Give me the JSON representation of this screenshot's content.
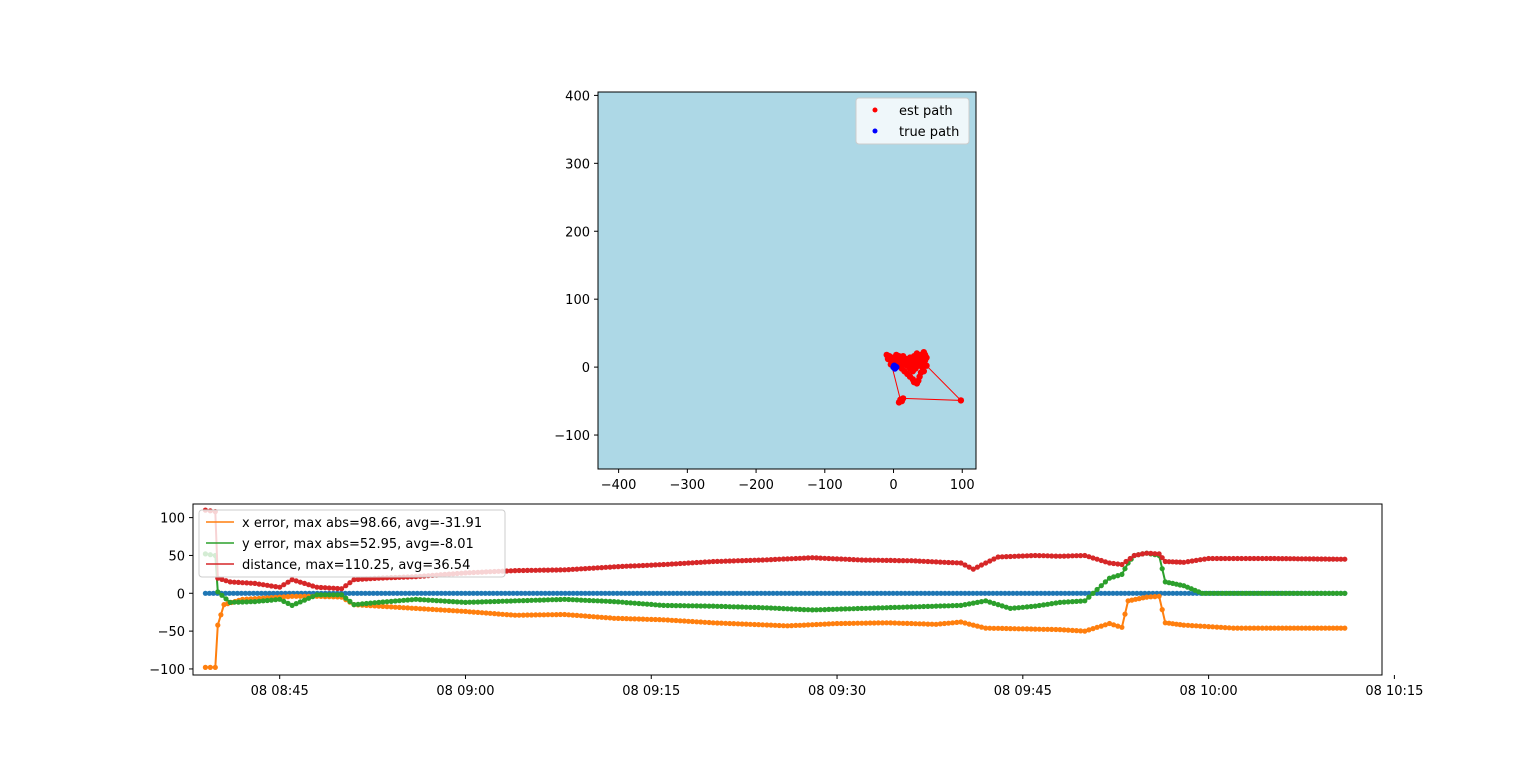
{
  "chart_data": [
    {
      "type": "scatter",
      "xlim": [
        -430,
        120
      ],
      "ylim": [
        -150,
        405
      ],
      "grid": false,
      "background_color": "#add8e6",
      "legend_placement": "top-right",
      "x_ticks": [
        -400,
        -300,
        -200,
        -100,
        0,
        100
      ],
      "y_ticks": [
        -100,
        0,
        100,
        200,
        300,
        400
      ],
      "x_tick_labels": [
        "−400",
        "−300",
        "−200",
        "−100",
        "0",
        "100"
      ],
      "y_tick_labels": [
        "−100",
        "0",
        "100",
        "200",
        "300",
        "400"
      ],
      "series": [
        {
          "name": "est path",
          "color": "#ff0000",
          "points": [
            [
              -10,
              18
            ],
            [
              -6,
              14
            ],
            [
              -4,
              10
            ],
            [
              0,
              14
            ],
            [
              4,
              18
            ],
            [
              8,
              14
            ],
            [
              10,
              10
            ],
            [
              14,
              16
            ],
            [
              18,
              12
            ],
            [
              20,
              8
            ],
            [
              24,
              14
            ],
            [
              28,
              10
            ],
            [
              30,
              16
            ],
            [
              34,
              20
            ],
            [
              38,
              14
            ],
            [
              40,
              18
            ],
            [
              44,
              22
            ],
            [
              46,
              18
            ],
            [
              48,
              14
            ],
            [
              46,
              10
            ],
            [
              44,
              6
            ],
            [
              42,
              0
            ],
            [
              40,
              -8
            ],
            [
              38,
              -14
            ],
            [
              36,
              -20
            ],
            [
              34,
              -24
            ],
            [
              30,
              -22
            ],
            [
              28,
              -18
            ],
            [
              24,
              -14
            ],
            [
              20,
              -10
            ],
            [
              16,
              -6
            ],
            [
              12,
              -2
            ],
            [
              8,
              2
            ],
            [
              4,
              6
            ],
            [
              2,
              10
            ],
            [
              6,
              8
            ],
            [
              10,
              6
            ],
            [
              14,
              4
            ],
            [
              18,
              6
            ],
            [
              22,
              8
            ],
            [
              26,
              6
            ],
            [
              30,
              4
            ],
            [
              32,
              8
            ],
            [
              36,
              12
            ],
            [
              42,
              16
            ],
            [
              44,
              12
            ],
            [
              40,
              6
            ],
            [
              36,
              2
            ],
            [
              32,
              -2
            ],
            [
              28,
              -6
            ],
            [
              24,
              -2
            ],
            [
              20,
              2
            ],
            [
              16,
              8
            ],
            [
              12,
              12
            ],
            [
              8,
              16
            ],
            [
              4,
              14
            ],
            [
              0,
              8
            ],
            [
              -4,
              4
            ],
            [
              -8,
              12
            ],
            [
              -6,
              16
            ],
            [
              10,
              -48
            ],
            [
              8,
              -52
            ],
            [
              12,
              -50
            ],
            [
              14,
              -46
            ],
            [
              98,
              -49
            ],
            [
              48,
              2
            ],
            [
              44,
              -6
            ]
          ]
        },
        {
          "name": "true path",
          "color": "#0000ff",
          "points": [
            [
              0,
              0
            ],
            [
              2,
              -2
            ],
            [
              4,
              0
            ],
            [
              1,
              2
            ]
          ]
        }
      ]
    },
    {
      "type": "line",
      "x_type": "time",
      "xlim": [
        "08 08:38",
        "08 10:14"
      ],
      "ylim": [
        -108,
        118
      ],
      "grid": false,
      "legend_placement": "top-left",
      "x_ticks": [
        "08 08:45",
        "08 09:00",
        "08 09:15",
        "08 09:30",
        "08 09:45",
        "08 10:00",
        "08 10:15"
      ],
      "y_ticks": [
        -100,
        -50,
        0,
        50,
        100
      ],
      "x_tick_labels": [
        "08 08:45",
        "08 09:00",
        "08 09:15",
        "08 09:30",
        "08 09:45",
        "08 10:00",
        "08 10:15"
      ],
      "y_tick_labels": [
        "−100",
        "−50",
        "0",
        "50",
        "100"
      ],
      "x_range_plotted": [
        "08 08:39",
        "08 10:11"
      ],
      "series": [
        {
          "name": "",
          "color": "#1f77b4",
          "points": [
            [
              "08 08:39",
              0
            ],
            [
              "08 10:11",
              0
            ]
          ]
        },
        {
          "name": "x error, max abs=98.66, avg=-31.91",
          "color": "#ff7f0e",
          "points": [
            [
              "08 08:39",
              -98
            ],
            [
              "08 08:39.8",
              -98
            ],
            [
              "08 08:40",
              -42
            ],
            [
              "08 08:40.5",
              -15
            ],
            [
              "08 08:42",
              -8
            ],
            [
              "08 08:44",
              -6
            ],
            [
              "08 08:46",
              -4
            ],
            [
              "08 08:48",
              -4
            ],
            [
              "08 08:50",
              -5
            ],
            [
              "08 08:51",
              -15
            ],
            [
              "08 08:53",
              -17
            ],
            [
              "08 08:56",
              -20
            ],
            [
              "08 09:00",
              -24
            ],
            [
              "08 09:04",
              -29
            ],
            [
              "08 09:08",
              -28
            ],
            [
              "08 09:12",
              -33
            ],
            [
              "08 09:16",
              -35
            ],
            [
              "08 09:20",
              -39
            ],
            [
              "08 09:23",
              -41
            ],
            [
              "08 09:26",
              -43
            ],
            [
              "08 09:30",
              -40
            ],
            [
              "08 09:34",
              -39
            ],
            [
              "08 09:38",
              -41
            ],
            [
              "08 09:40",
              -38
            ],
            [
              "08 09:42",
              -46
            ],
            [
              "08 09:45",
              -47
            ],
            [
              "08 09:48",
              -48
            ],
            [
              "08 09:50",
              -50
            ],
            [
              "08 09:52",
              -40
            ],
            [
              "08 09:53",
              -45
            ],
            [
              "08 09:53.5",
              -10
            ],
            [
              "08 09:55",
              -5
            ],
            [
              "08 09:56",
              -4
            ],
            [
              "08 09:56.5",
              -39
            ],
            [
              "08 09:58",
              -42
            ],
            [
              "08 10:00",
              -44
            ],
            [
              "08 10:02",
              -46
            ],
            [
              "08 10:05",
              -46
            ],
            [
              "08 10:11",
              -46
            ]
          ]
        },
        {
          "name": "y error, max abs=52.95, avg=-8.01",
          "color": "#2ca02c",
          "points": [
            [
              "08 08:39",
              52
            ],
            [
              "08 08:39.8",
              50
            ],
            [
              "08 08:40",
              2
            ],
            [
              "08 08:41",
              -12
            ],
            [
              "08 08:43",
              -11
            ],
            [
              "08 08:45",
              -8
            ],
            [
              "08 08:46",
              -16
            ],
            [
              "08 08:48",
              -2
            ],
            [
              "08 08:50",
              -2
            ],
            [
              "08 08:51",
              -15
            ],
            [
              "08 08:53",
              -12
            ],
            [
              "08 08:56",
              -8
            ],
            [
              "08 09:00",
              -12
            ],
            [
              "08 09:04",
              -10
            ],
            [
              "08 09:08",
              -8
            ],
            [
              "08 09:12",
              -11
            ],
            [
              "08 09:16",
              -16
            ],
            [
              "08 09:20",
              -17
            ],
            [
              "08 09:24",
              -19
            ],
            [
              "08 09:28",
              -22
            ],
            [
              "08 09:32",
              -20
            ],
            [
              "08 09:36",
              -18
            ],
            [
              "08 09:40",
              -16
            ],
            [
              "08 09:42",
              -10
            ],
            [
              "08 09:44",
              -20
            ],
            [
              "08 09:46",
              -17
            ],
            [
              "08 09:48",
              -12
            ],
            [
              "08 09:50",
              -10
            ],
            [
              "08 09:51",
              5
            ],
            [
              "08 09:52",
              20
            ],
            [
              "08 09:53",
              25
            ],
            [
              "08 09:53.5",
              40
            ],
            [
              "08 09:54",
              50
            ],
            [
              "08 09:55",
              53
            ],
            [
              "08 09:56",
              50
            ],
            [
              "08 09:56.5",
              15
            ],
            [
              "08 09:58",
              10
            ],
            [
              "08 09:59.5",
              0
            ],
            [
              "08 10:05",
              0
            ],
            [
              "08 10:11",
              0
            ]
          ]
        },
        {
          "name": "distance, max=110.25, avg=36.54",
          "color": "#d62728",
          "points": [
            [
              "08 08:39",
              110
            ],
            [
              "08 08:39.8",
              108
            ],
            [
              "08 08:40",
              20
            ],
            [
              "08 08:41",
              15
            ],
            [
              "08 08:43",
              13
            ],
            [
              "08 08:45",
              8
            ],
            [
              "08 08:46",
              18
            ],
            [
              "08 08:48",
              8
            ],
            [
              "08 08:50",
              6
            ],
            [
              "08 08:51",
              18
            ],
            [
              "08 08:53",
              20
            ],
            [
              "08 08:56",
              22
            ],
            [
              "08 09:00",
              27
            ],
            [
              "08 09:04",
              30
            ],
            [
              "08 09:08",
              31
            ],
            [
              "08 09:12",
              35
            ],
            [
              "08 09:16",
              38
            ],
            [
              "08 09:20",
              42
            ],
            [
              "08 09:24",
              44
            ],
            [
              "08 09:28",
              47
            ],
            [
              "08 09:32",
              44
            ],
            [
              "08 09:36",
              43
            ],
            [
              "08 09:40",
              40
            ],
            [
              "08 09:41",
              32
            ],
            [
              "08 09:43",
              48
            ],
            [
              "08 09:46",
              50
            ],
            [
              "08 09:48",
              49
            ],
            [
              "08 09:50",
              50
            ],
            [
              "08 09:52",
              40
            ],
            [
              "08 09:53",
              38
            ],
            [
              "08 09:54",
              50
            ],
            [
              "08 09:55",
              53
            ],
            [
              "08 09:56",
              52
            ],
            [
              "08 09:56.5",
              42
            ],
            [
              "08 09:58",
              41
            ],
            [
              "08 10:00",
              46
            ],
            [
              "08 10:05",
              46
            ],
            [
              "08 10:11",
              45
            ]
          ]
        }
      ]
    }
  ]
}
